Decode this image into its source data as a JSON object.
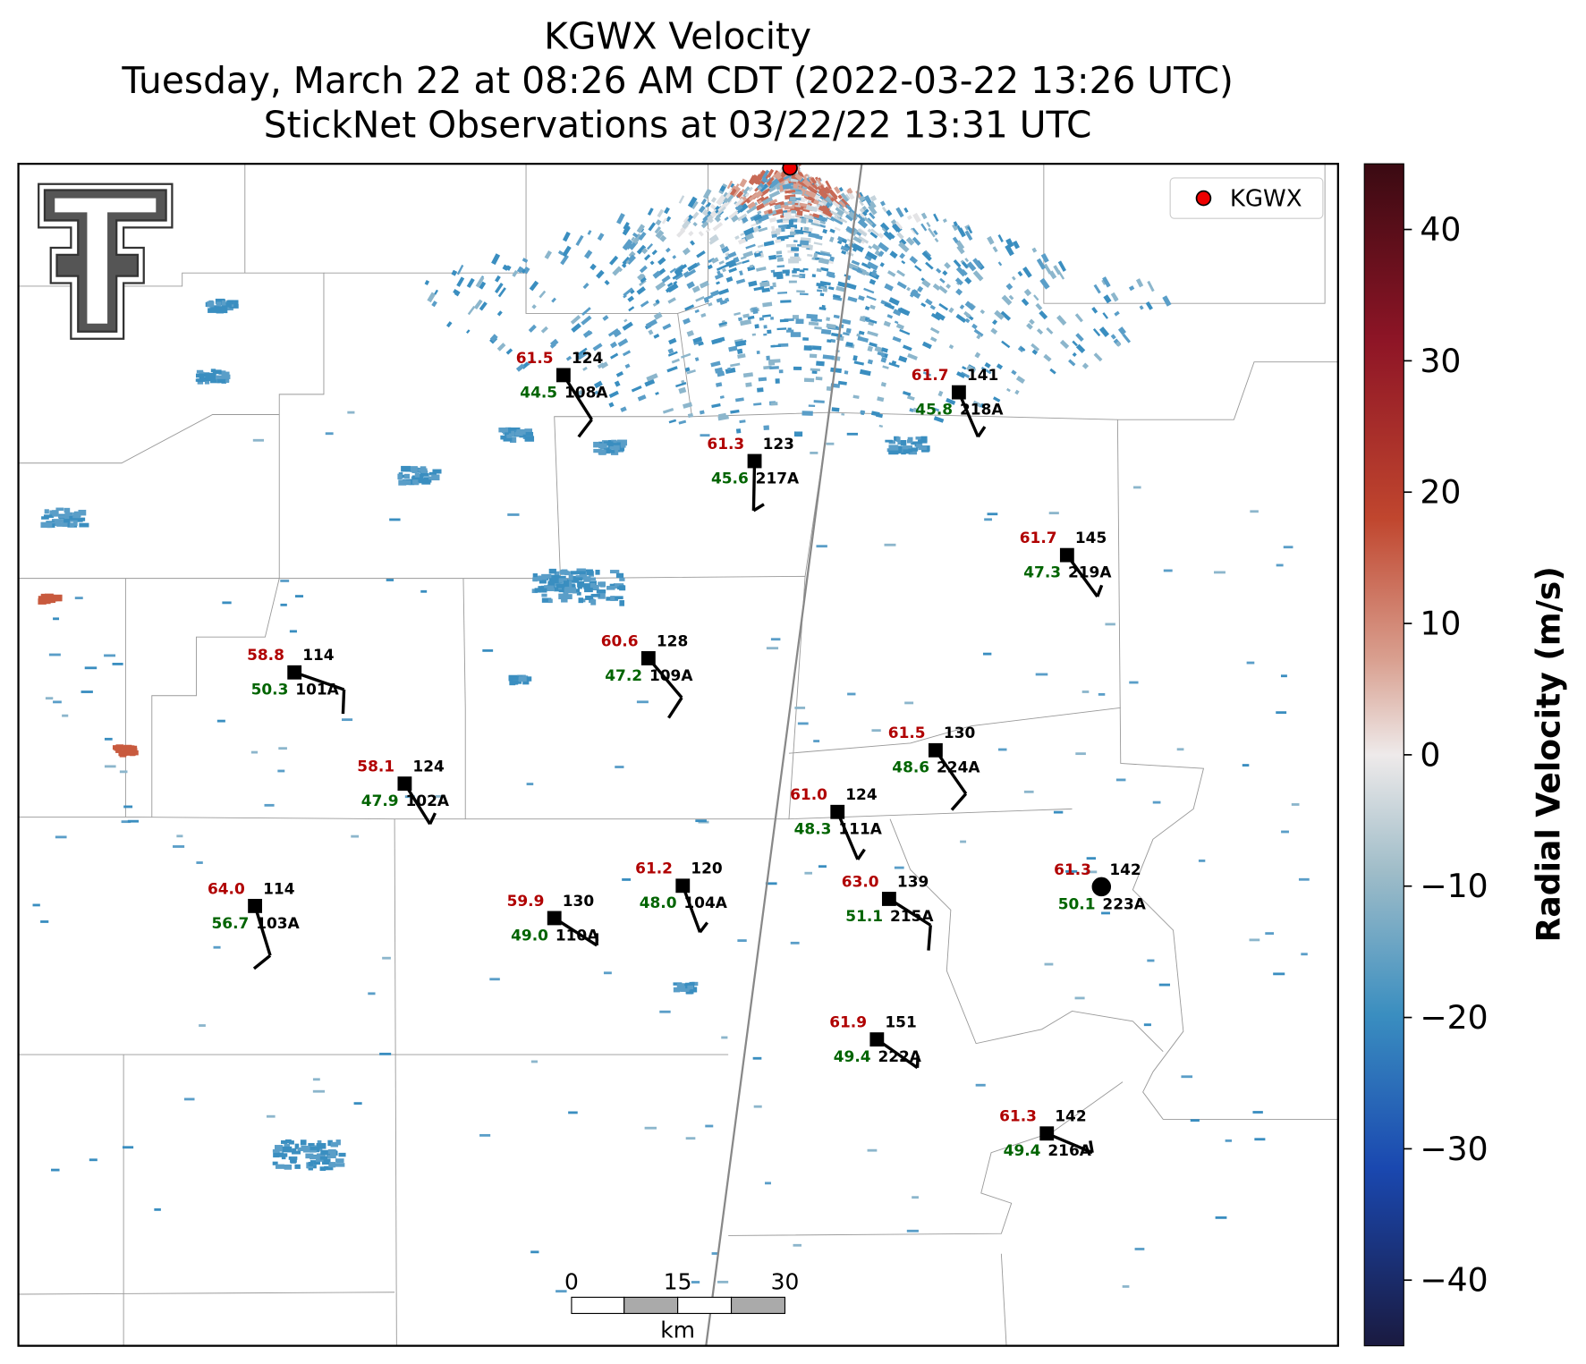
{
  "title": [
    "KGWX Velocity",
    "Tuesday, March 22 at 08:26 AM CDT (2022-03-22 13:26 UTC)",
    "StickNet Observations at 03/22/22 13:31 UTC"
  ],
  "legend": "KGWX",
  "colorbar": {
    "label": "Radial Velocity (m/s)",
    "lim": [
      -45,
      45
    ],
    "ticks": [
      40,
      30,
      20,
      10,
      0,
      {
        "value": -10,
        "label": "−10"
      },
      {
        "value": -20,
        "label": "−20"
      },
      {
        "value": -30,
        "label": "−30"
      },
      {
        "value": -40,
        "label": "−40"
      }
    ]
  },
  "scale_bar": {
    "ticks": [
      0,
      15,
      30
    ],
    "unit": "km"
  },
  "stations": [
    {
      "id": "108A",
      "temp": "61.5",
      "dew": "44.5",
      "pres": "124"
    },
    {
      "id": "217A",
      "temp": "61.3",
      "dew": "45.6",
      "pres": "123"
    },
    {
      "id": "218A",
      "temp": "61.7",
      "dew": "45.8",
      "pres": "141"
    },
    {
      "id": "219A",
      "temp": "61.7",
      "dew": "47.3",
      "pres": "145"
    },
    {
      "id": "101A",
      "temp": "58.8",
      "dew": "50.3",
      "pres": "114"
    },
    {
      "id": "109A",
      "temp": "60.6",
      "dew": "47.2",
      "pres": "128"
    },
    {
      "id": "224A",
      "temp": "61.5",
      "dew": "48.6",
      "pres": "130"
    },
    {
      "id": "102A",
      "temp": "58.1",
      "dew": "47.9",
      "pres": "124"
    },
    {
      "id": "111A",
      "temp": "61.0",
      "dew": "48.3",
      "pres": "124"
    },
    {
      "id": "103A",
      "temp": "64.0",
      "dew": "56.7",
      "pres": "114"
    },
    {
      "id": "110A",
      "temp": "59.9",
      "dew": "49.0",
      "pres": "130"
    },
    {
      "id": "104A",
      "temp": "61.2",
      "dew": "48.0",
      "pres": "120"
    },
    {
      "id": "215A",
      "temp": "63.0",
      "dew": "51.1",
      "pres": "139"
    },
    {
      "id": "223A",
      "temp": "61.3",
      "dew": "50.1",
      "pres": "142"
    },
    {
      "id": "222A",
      "temp": "61.9",
      "dew": "49.4",
      "pres": "151"
    },
    {
      "id": "216A",
      "temp": "61.3",
      "dew": "49.4",
      "pres": "142"
    }
  ]
}
